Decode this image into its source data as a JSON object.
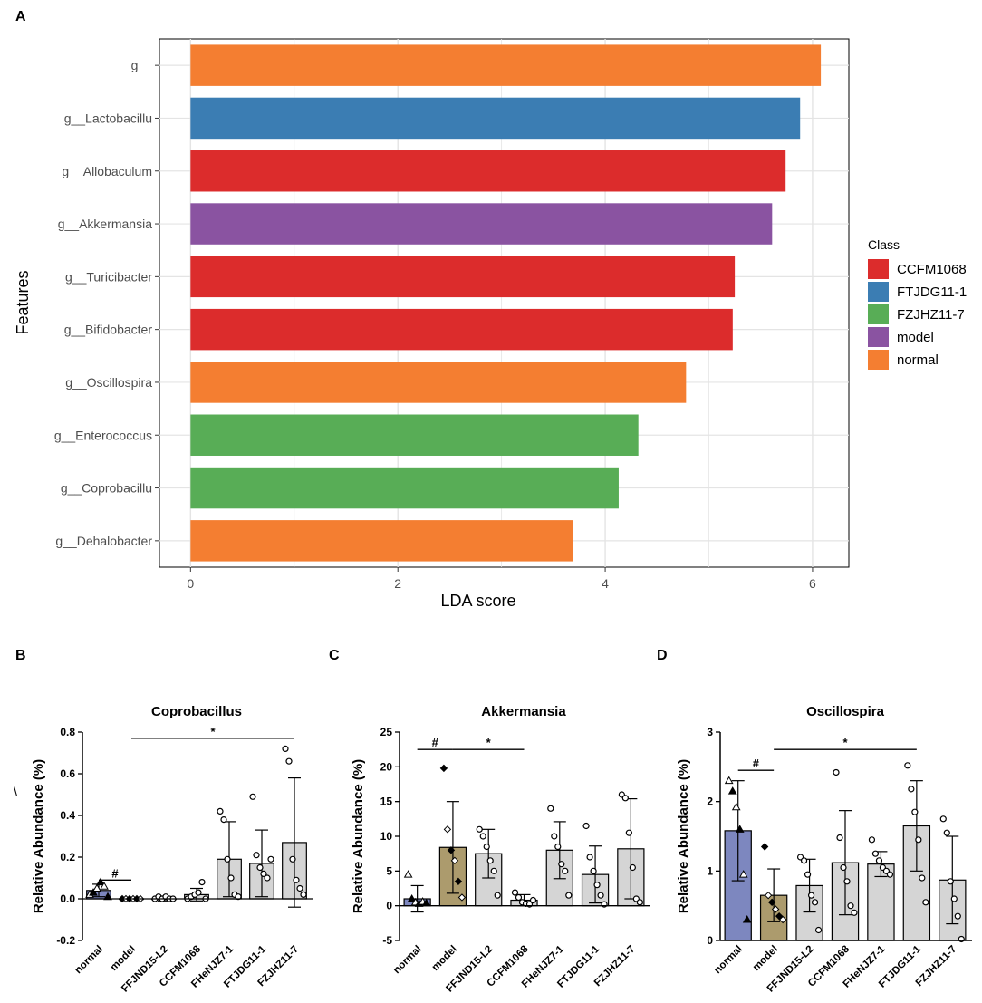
{
  "panel_labels": {
    "A": "A",
    "B": "B",
    "C": "C",
    "D": "D"
  },
  "stray_mark": "\\",
  "colors": {
    "CCFM1068": "#dc2c2c",
    "FTJDG11-1": "#3b7db3",
    "FZJHZ11-7": "#58ad56",
    "model": "#8a53a1",
    "normal": "#f47e31",
    "bar_normal": "#7d87bf",
    "bar_model": "#ac9b6d",
    "bar_other": "#d5d5d5"
  },
  "chart_data": [
    {
      "type": "bar",
      "orientation": "horizontal",
      "title": "",
      "xlabel": "LDA score",
      "ylabel": "Features",
      "xlim": [
        -0.3,
        6.35
      ],
      "xticks": [
        0,
        2,
        4,
        6
      ],
      "categories": [
        "g__",
        "g__Lactobacillu",
        "g__Allobaculum",
        "g__Akkermansia",
        "g__Turicibacter",
        "g__Bifidobacter",
        "g__Oscillospira",
        "g__Enterococcus",
        "g__Coprobacillu",
        "g__Dehalobacter"
      ],
      "values": [
        6.08,
        5.88,
        5.74,
        5.61,
        5.25,
        5.23,
        4.78,
        4.32,
        4.13,
        3.69
      ],
      "classes": [
        "normal",
        "FTJDG11-1",
        "CCFM1068",
        "model",
        "CCFM1068",
        "CCFM1068",
        "normal",
        "FZJHZ11-7",
        "FZJHZ11-7",
        "normal"
      ],
      "legend": {
        "title": "Class",
        "entries": [
          "CCFM1068",
          "FTJDG11-1",
          "FZJHZ11-7",
          "model",
          "normal"
        ],
        "placement": "right"
      },
      "grid": true
    },
    {
      "type": "bar",
      "title": "Coprobacillus",
      "ylabel": "Relative Abundance (%)",
      "ylim": [
        -0.2,
        0.8
      ],
      "yticks": [
        -0.2,
        0.0,
        0.2,
        0.4,
        0.6,
        0.8
      ],
      "ytick_labels": [
        "-0.2",
        "0.0",
        "0.2",
        "0.4",
        "0.6",
        "0.8"
      ],
      "categories": [
        "normal",
        "model",
        "FFJND15-L2",
        "CCFM1068",
        "FHeNJZ7-1",
        "FTJDG11-1",
        "FZJHZ11-7"
      ],
      "means": [
        0.04,
        0.0,
        0.0,
        0.02,
        0.19,
        0.17,
        0.27
      ],
      "sd": [
        0.03,
        0.005,
        0.01,
        0.03,
        0.18,
        0.16,
        0.31
      ],
      "points": [
        [
          0.02,
          0.03,
          0.05,
          0.08,
          0.06,
          0.01
        ],
        [
          0.0,
          0.0,
          0.0,
          0.0,
          0.0,
          0.0
        ],
        [
          0.0,
          0.01,
          0.0,
          0.01,
          0.0,
          0.0
        ],
        [
          0.0,
          0.01,
          0.02,
          0.03,
          0.08,
          0.0
        ],
        [
          0.42,
          0.38,
          0.19,
          0.1,
          0.02,
          0.01
        ],
        [
          0.49,
          0.21,
          0.15,
          0.12,
          0.1,
          0.19
        ],
        [
          0.72,
          0.66,
          0.19,
          0.09,
          0.05,
          0.02
        ]
      ],
      "significance": [
        {
          "label": "#",
          "from": 0,
          "to": 1,
          "y": 0.09
        },
        {
          "label": "*",
          "from": 1,
          "to": 6,
          "y": 0.77
        }
      ]
    },
    {
      "type": "bar",
      "title": "Akkermansia",
      "ylabel": "Relative Abundance (%)",
      "ylim": [
        -5,
        25
      ],
      "yticks": [
        -5,
        0,
        5,
        10,
        15,
        20,
        25
      ],
      "ytick_labels": [
        "-5",
        "0",
        "5",
        "10",
        "15",
        "20",
        "25"
      ],
      "categories": [
        "normal",
        "model",
        "FFJND15-L2",
        "CCFM1068",
        "FHeNJZ7-1",
        "FTJDG11-1",
        "FZJHZ11-7"
      ],
      "means": [
        1.0,
        8.4,
        7.5,
        0.8,
        8.0,
        4.5,
        8.2
      ],
      "sd": [
        1.9,
        6.6,
        3.5,
        0.8,
        4.1,
        4.1,
        7.2
      ],
      "points": [
        [
          4.5,
          1.0,
          0.5,
          0.3,
          0.6,
          0.4
        ],
        [
          19.8,
          11.0,
          8.0,
          6.5,
          3.5,
          1.2
        ],
        [
          11.0,
          10.0,
          8.5,
          6.5,
          5.0,
          1.5
        ],
        [
          1.9,
          1.2,
          0.5,
          0.3,
          0.2,
          0.8
        ],
        [
          14.0,
          10.0,
          8.5,
          6.0,
          5.0,
          1.5
        ],
        [
          11.5,
          7.0,
          5.0,
          3.0,
          1.5,
          0.2
        ],
        [
          16.0,
          15.5,
          10.5,
          5.5,
          1.0,
          0.5
        ]
      ],
      "significance": [
        {
          "label": "#",
          "from": 0,
          "to": 1,
          "y": 22.5
        },
        {
          "label": "*",
          "from": 1,
          "to": 3,
          "y": 22.5
        }
      ]
    },
    {
      "type": "bar",
      "title": "Oscillospira",
      "ylabel": "Relative Abundance (%)",
      "ylim": [
        0,
        3
      ],
      "yticks": [
        0,
        1,
        2,
        3
      ],
      "ytick_labels": [
        "0",
        "1",
        "2",
        "3"
      ],
      "categories": [
        "normal",
        "model",
        "FFJND15-L2",
        "CCFM1068",
        "FHeNJZ7-1",
        "FTJDG11-1",
        "FZJHZ11-7"
      ],
      "means": [
        1.58,
        0.65,
        0.79,
        1.12,
        1.1,
        1.65,
        0.87
      ],
      "sd": [
        0.72,
        0.38,
        0.38,
        0.75,
        0.18,
        0.65,
        0.63
      ],
      "points": [
        [
          2.3,
          2.15,
          1.92,
          1.6,
          0.95,
          0.3
        ],
        [
          1.35,
          0.65,
          0.55,
          0.45,
          0.35,
          0.3
        ],
        [
          1.2,
          1.15,
          0.95,
          0.65,
          0.55,
          0.15
        ],
        [
          2.42,
          1.48,
          1.05,
          0.85,
          0.5,
          0.4
        ],
        [
          1.45,
          1.25,
          1.15,
          1.05,
          1.0,
          0.95
        ],
        [
          2.52,
          2.18,
          1.85,
          1.45,
          0.9,
          0.55
        ],
        [
          1.75,
          1.55,
          0.85,
          0.6,
          0.35,
          0.02
        ]
      ],
      "significance": [
        {
          "label": "#",
          "from": 0,
          "to": 1,
          "y": 2.45
        },
        {
          "label": "*",
          "from": 1,
          "to": 5,
          "y": 2.75
        }
      ]
    }
  ]
}
